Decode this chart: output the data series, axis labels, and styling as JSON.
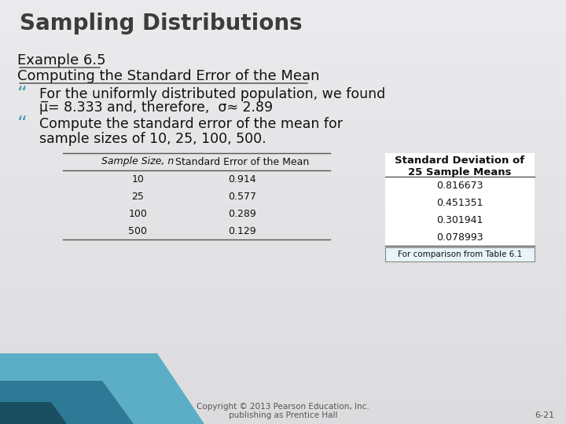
{
  "title": "Sampling Distributions",
  "title_fontsize": 20,
  "title_color": "#3C3C3C",
  "bg_top_color": "#E8E8E8",
  "bg_bottom_color": "#C8CDD2",
  "example_heading1": "Example 6.5",
  "example_heading2": "Computing the Standard Error of the Mean",
  "heading_fontsize": 13,
  "heading_color": "#111111",
  "bullet_marker": "“",
  "bullet_marker_color": "#4A9BB5",
  "bullet_marker_fontsize": 18,
  "bullet1_line1": "For the uniformly distributed population, we found",
  "bullet1_line2": "μ̲= 8.333 and, therefore,  σ≈ 2.89",
  "bullet2_line1": "Compute the standard error of the mean for",
  "bullet2_line2": "sample sizes of 10, 25, 100, 500.",
  "body_fontsize": 12.5,
  "body_color": "#111111",
  "table1_headers": [
    "Sample Size, n",
    "Standard Error of the Mean"
  ],
  "table1_rows": [
    [
      "10",
      "0.914"
    ],
    [
      "25",
      "0.577"
    ],
    [
      "100",
      "0.289"
    ],
    [
      "500",
      "0.129"
    ]
  ],
  "table2_header1": "Standard Deviation of",
  "table2_header2": "25 Sample Means",
  "table2_rows": [
    "0.816673",
    "0.451351",
    "0.301941",
    "0.078993"
  ],
  "table2_note": "For comparison from Table 6.1",
  "table_fontsize": 9,
  "footer1": "Copyright © 2013 Pearson Education, Inc.",
  "footer2": "publishing as Prentice Hall",
  "footer3": "6-21",
  "footer_fontsize": 7.5,
  "footer_color": "#555555",
  "teal_color1": "#5BAEC5",
  "teal_color2": "#2E7A96",
  "dark_teal": "#1A4F62"
}
